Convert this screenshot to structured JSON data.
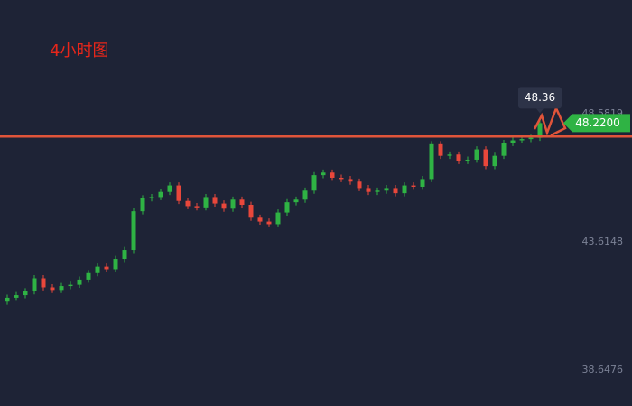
{
  "chart_data": {
    "type": "candlestick",
    "title": "4小时图",
    "open": [
      41.3,
      41.45,
      41.55,
      41.7,
      42.2,
      41.85,
      41.75,
      41.9,
      41.95,
      42.15,
      42.4,
      42.65,
      42.55,
      42.95,
      43.3,
      44.8,
      45.3,
      45.35,
      45.55,
      45.8,
      45.2,
      45.0,
      44.95,
      45.35,
      45.1,
      44.9,
      45.25,
      45.05,
      44.55,
      44.4,
      44.3,
      44.75,
      45.15,
      45.25,
      45.6,
      46.2,
      46.3,
      46.1,
      46.05,
      45.95,
      45.7,
      45.55,
      45.6,
      45.7,
      45.5,
      45.8,
      45.75,
      46.05,
      47.4,
      46.95,
      47.0,
      46.75,
      46.8,
      47.2,
      46.55,
      46.95,
      47.45,
      47.55,
      47.6,
      47.65
    ],
    "high": [
      41.57,
      41.67,
      41.82,
      42.32,
      42.32,
      41.97,
      42.02,
      42.07,
      42.27,
      42.52,
      42.77,
      42.77,
      43.07,
      43.42,
      44.92,
      45.42,
      45.47,
      45.67,
      45.92,
      45.92,
      45.32,
      45.12,
      45.47,
      45.47,
      45.22,
      45.37,
      45.37,
      45.17,
      44.67,
      44.52,
      44.87,
      45.27,
      45.37,
      45.72,
      46.32,
      46.42,
      46.42,
      46.22,
      46.17,
      46.07,
      45.82,
      45.72,
      45.82,
      45.82,
      45.92,
      45.92,
      46.17,
      47.52,
      47.52,
      47.12,
      47.12,
      46.92,
      47.32,
      47.32,
      47.07,
      47.57,
      47.67,
      47.72,
      47.77,
      48.36
    ],
    "low": [
      41.18,
      41.33,
      41.43,
      41.58,
      41.73,
      41.63,
      41.63,
      41.78,
      41.83,
      42.03,
      42.28,
      42.43,
      42.43,
      42.83,
      43.18,
      44.68,
      45.18,
      45.23,
      45.43,
      45.08,
      44.88,
      44.83,
      44.83,
      44.98,
      44.78,
      44.78,
      44.93,
      44.43,
      44.28,
      44.18,
      44.18,
      44.63,
      45.03,
      45.13,
      45.48,
      46.08,
      45.98,
      45.93,
      45.83,
      45.58,
      45.43,
      45.43,
      45.48,
      45.38,
      45.38,
      45.63,
      45.63,
      45.93,
      46.83,
      46.83,
      46.63,
      46.63,
      46.68,
      46.43,
      46.43,
      46.83,
      47.33,
      47.43,
      47.48,
      47.53
    ],
    "close": [
      41.45,
      41.55,
      41.7,
      42.2,
      41.85,
      41.75,
      41.9,
      41.95,
      42.15,
      42.4,
      42.65,
      42.55,
      42.95,
      43.3,
      44.8,
      45.3,
      45.35,
      45.55,
      45.8,
      45.2,
      45.0,
      44.95,
      45.35,
      45.1,
      44.9,
      45.25,
      45.05,
      44.55,
      44.4,
      44.3,
      44.75,
      45.15,
      45.25,
      45.6,
      46.2,
      46.3,
      46.1,
      46.05,
      45.95,
      45.7,
      45.55,
      45.6,
      45.7,
      45.5,
      45.8,
      45.75,
      46.05,
      47.4,
      46.95,
      47.0,
      46.75,
      46.8,
      47.2,
      46.55,
      46.95,
      47.45,
      47.55,
      47.6,
      47.65,
      48.22
    ],
    "up_color": "#2fb344",
    "down_color": "#e8473b",
    "ylim": [
      37.25,
      52.99
    ],
    "yticks": [
      48.5819,
      43.6148,
      38.6476
    ],
    "hline": 47.7,
    "hline_color": "#e0543a",
    "tooltip": 48.36,
    "last_price": {
      "value": 48.22,
      "label": "48.2200"
    }
  }
}
